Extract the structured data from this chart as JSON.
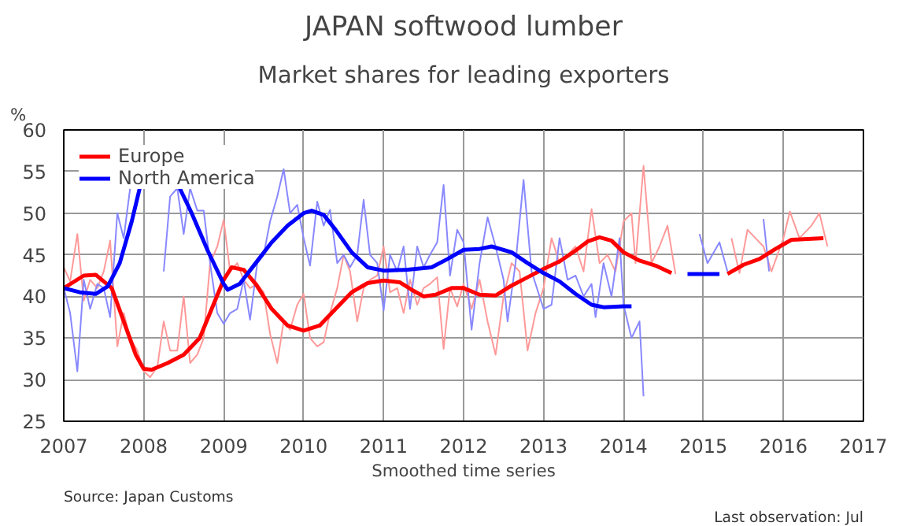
{
  "chart_data": {
    "type": "line",
    "title": "JAPAN softwood lumber",
    "subtitle": "Market shares for leading exporters",
    "ylabel": "%",
    "xlabel": "Smoothed time series",
    "annotations": [
      "Source: Japan Customs",
      "Last observation: Jul"
    ],
    "xlim": [
      2007,
      2017
    ],
    "xticks": [
      2007,
      2008,
      2009,
      2010,
      2011,
      2012,
      2013,
      2014,
      2015,
      2016,
      2017
    ],
    "ylim": [
      25,
      60
    ],
    "yticks": [
      25,
      30,
      35,
      40,
      45,
      50,
      55,
      60
    ],
    "grid": true,
    "legend": "top left",
    "line_style": "solid",
    "series": [
      {
        "color": "#ff9999",
        "x": [
          2007.0,
          2007.08,
          2007.17,
          2007.25,
          2007.33,
          2007.42,
          2007.5,
          2007.58,
          2007.67,
          2007.75,
          2007.83,
          2007.92,
          2008.0,
          2008.08,
          2008.17,
          2008.25,
          2008.33,
          2008.42,
          2008.5,
          2008.58,
          2008.67,
          2008.75,
          2008.83,
          2008.92,
          2009.0,
          2009.08,
          2009.17,
          2009.25,
          2009.33,
          2009.42,
          2009.5,
          2009.58,
          2009.67,
          2009.75,
          2009.83,
          2009.92,
          2010.0,
          2010.08,
          2010.17,
          2010.25,
          2010.33,
          2010.42,
          2010.5,
          2010.58,
          2010.67,
          2010.75,
          2010.83,
          2010.92,
          2011.0,
          2011.08,
          2011.17,
          2011.25,
          2011.33,
          2011.42,
          2011.5,
          2011.58,
          2011.67,
          2011.75,
          2011.83,
          2011.92,
          2012.0,
          2012.1,
          2012.2,
          2012.3,
          2012.4,
          2012.5,
          2012.6,
          2012.7,
          2012.8,
          2012.9,
          2013.0,
          2013.1,
          2013.2,
          2013.3,
          2013.4,
          2013.5,
          2013.6,
          2013.7,
          2013.8,
          2013.9,
          2014.0,
          2014.1,
          2014.15,
          2014.25,
          2014.35,
          2014.45,
          2014.55,
          2014.65,
          2015.0,
          2015.35,
          2015.45,
          2015.55,
          2015.65,
          2015.75,
          2015.85,
          2016.0,
          2016.08,
          2016.2,
          2016.35,
          2016.45,
          2016.55
        ],
        "values": [
          43.5,
          41.8,
          47.5,
          39.5,
          42,
          41,
          43,
          46.7,
          34,
          38,
          35,
          33.5,
          31,
          30.3,
          31.5,
          37,
          33.5,
          33.5,
          40,
          32,
          33,
          35,
          44,
          46,
          49.2,
          43,
          44,
          42,
          41,
          41.5,
          40.5,
          35.5,
          32,
          37,
          36,
          39,
          40.3,
          35,
          34,
          34.5,
          38,
          41,
          45,
          43,
          37,
          41,
          42,
          42.5,
          46,
          40.5,
          41,
          38,
          42,
          39,
          41,
          41.5,
          42.3,
          33.7,
          41,
          38.8,
          41.5,
          38.5,
          42,
          37,
          33,
          40,
          44,
          43,
          33.5,
          38,
          41,
          47,
          44,
          45,
          46,
          43,
          50.5,
          44,
          45,
          43,
          49,
          50,
          44,
          55.7,
          44,
          46,
          48.5,
          42.7,
          null,
          47,
          42.8,
          48,
          47,
          46,
          43,
          47,
          50.2,
          47,
          48.5,
          50,
          46
        ]
      },
      {
        "color": "#8888ff",
        "x": [
          2007.0,
          2007.08,
          2007.17,
          2007.25,
          2007.33,
          2007.42,
          2007.5,
          2007.58,
          2007.67,
          2007.75,
          2007.83,
          2008.0,
          2008.25,
          2008.33,
          2008.42,
          2008.5,
          2008.58,
          2008.67,
          2008.75,
          2008.83,
          2008.92,
          2009.0,
          2009.08,
          2009.17,
          2009.25,
          2009.33,
          2009.42,
          2009.5,
          2009.58,
          2009.67,
          2009.75,
          2009.83,
          2009.92,
          2010.0,
          2010.08,
          2010.17,
          2010.25,
          2010.33,
          2010.42,
          2010.5,
          2010.58,
          2010.67,
          2010.75,
          2010.83,
          2010.92,
          2011.0,
          2011.08,
          2011.17,
          2011.25,
          2011.33,
          2011.42,
          2011.5,
          2011.58,
          2011.67,
          2011.75,
          2011.83,
          2011.92,
          2012.0,
          2012.1,
          2012.2,
          2012.3,
          2012.4,
          2012.5,
          2012.55,
          2012.65,
          2012.75,
          2012.85,
          2013.0,
          2013.1,
          2013.2,
          2013.3,
          2013.4,
          2013.5,
          2013.6,
          2013.65,
          2013.75,
          2013.85,
          2013.95,
          2014.0,
          2014.1,
          2014.2,
          2014.25,
          2014.3,
          2014.8,
          2014.95,
          2015.05,
          2015.2,
          2015.3,
          2015.5,
          2015.75,
          2015.82
        ],
        "values": [
          41,
          38,
          31,
          42,
          38.5,
          41.5,
          41,
          37.5,
          50,
          47,
          53,
          null,
          43,
          52,
          53,
          47.5,
          53,
          50.3,
          50.3,
          44,
          38,
          36.7,
          38,
          38.5,
          42,
          37.2,
          44,
          45,
          49,
          52,
          55.3,
          50,
          51,
          47,
          43.7,
          51.4,
          48.5,
          50.4,
          44,
          45,
          43.5,
          45,
          51.6,
          45,
          44,
          38.3,
          45,
          43,
          46,
          38.5,
          46,
          43.5,
          45,
          46.5,
          53.4,
          42.5,
          48,
          46.5,
          36,
          44,
          49.5,
          46,
          42,
          37,
          44,
          54,
          43,
          38.5,
          39,
          47,
          42,
          42.5,
          40,
          41.5,
          37.5,
          44,
          40,
          47,
          39,
          35,
          37,
          28,
          null,
          null,
          47.5,
          44,
          46.5,
          43,
          null,
          49.3,
          43
        ]
      },
      {
        "name": "Europe",
        "color": "#ff0000",
        "x": [
          2007.0,
          2007.25,
          2007.4,
          2007.6,
          2007.75,
          2007.9,
          2008.0,
          2008.1,
          2008.3,
          2008.5,
          2008.7,
          2008.85,
          2009.0,
          2009.1,
          2009.25,
          2009.4,
          2009.6,
          2009.8,
          2010.0,
          2010.2,
          2010.4,
          2010.6,
          2010.8,
          2011.0,
          2011.2,
          2011.35,
          2011.5,
          2011.65,
          2011.85,
          2012.0,
          2012.2,
          2012.4,
          2012.6,
          2012.8,
          2013.0,
          2013.2,
          2013.4,
          2013.55,
          2013.7,
          2013.85,
          2014.0,
          2014.2,
          2014.4,
          2014.6,
          2014.9,
          2015.3,
          2015.5,
          2015.7,
          2015.9,
          2016.1,
          2016.5
        ],
        "values": [
          41,
          42.5,
          42.6,
          41,
          37,
          33,
          31.3,
          31.2,
          32,
          33,
          35,
          38.5,
          42,
          43.5,
          43.2,
          41.5,
          38.5,
          36.5,
          35.9,
          36.5,
          38.5,
          40.5,
          41.6,
          41.9,
          41.7,
          40.8,
          40,
          40.2,
          41,
          41,
          40.2,
          40.1,
          41.3,
          42.3,
          43.3,
          44.2,
          45.5,
          46.6,
          47.1,
          46.7,
          45.3,
          44.3,
          43.7,
          42.8,
          null,
          42.7,
          43.8,
          44.5,
          45.7,
          46.8,
          47
        ]
      },
      {
        "name": "North America",
        "color": "#0000ff",
        "x": [
          2007.0,
          2007.2,
          2007.4,
          2007.55,
          2007.7,
          2007.85,
          2007.95,
          2008.2,
          2008.45,
          2008.6,
          2008.8,
          2009.0,
          2009.05,
          2009.2,
          2009.4,
          2009.6,
          2009.8,
          2010.0,
          2010.1,
          2010.25,
          2010.4,
          2010.6,
          2010.8,
          2011.0,
          2011.3,
          2011.6,
          2011.8,
          2012.0,
          2012.2,
          2012.35,
          2012.6,
          2012.8,
          2013.0,
          2013.2,
          2013.4,
          2013.6,
          2013.75,
          2014.0,
          2014.1,
          2014.5,
          2014.8,
          2015.2
        ],
        "values": [
          41,
          40.5,
          40.3,
          41.2,
          44,
          49,
          53,
          null,
          53,
          50,
          45.5,
          41.5,
          40.8,
          41.5,
          44,
          46.5,
          48.5,
          50,
          50.3,
          49.8,
          48,
          45.3,
          43.5,
          43.1,
          43.2,
          43.5,
          44.5,
          45.6,
          45.7,
          46,
          45.3,
          44,
          42.8,
          41.8,
          40.3,
          39,
          38.7,
          38.8,
          38.8,
          null,
          42.7,
          42.7
        ]
      }
    ]
  }
}
